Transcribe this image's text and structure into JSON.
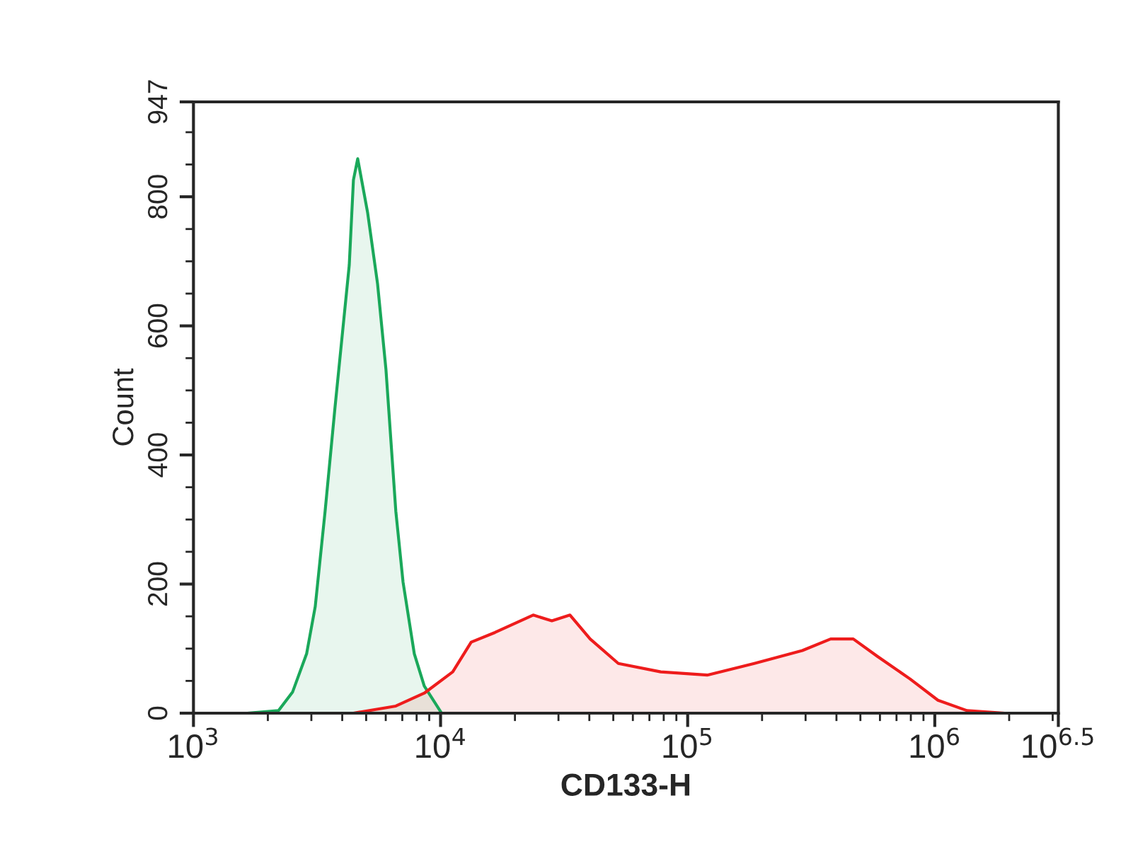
{
  "chart_data": {
    "type": "area",
    "xlabel": "CD133-H",
    "ylabel": "Count",
    "log": "x",
    "xlim": [
      1000,
      3162278
    ],
    "xticks": [
      {
        "value": 1000,
        "label": "10$^{3}$"
      },
      {
        "value": 10000,
        "label": "10$^{4}$"
      },
      {
        "value": 100000,
        "label": "10$^{5}$"
      },
      {
        "value": 1000000,
        "label": "10$^{6}$"
      },
      {
        "value": 3162278,
        "label": "10$^{6.5}$"
      }
    ],
    "ylim": [
      0,
      947
    ],
    "yticks": [
      0,
      200,
      400,
      600,
      800,
      947
    ],
    "grid": false,
    "series": [
      {
        "color": "#1aa85a",
        "x": [
          1650,
          2210,
          2520,
          2870,
          3110,
          3410,
          3740,
          4270,
          4440,
          4620,
          5070,
          5560,
          6010,
          6590,
          7050,
          7830,
          8590,
          10100
        ],
        "values": [
          0,
          4,
          33,
          92,
          165,
          313,
          474,
          694,
          826,
          859,
          775,
          665,
          533,
          313,
          203,
          92,
          42,
          0
        ]
      },
      {
        "color": "#ee1c1c",
        "x": [
          4440,
          6590,
          8590,
          11200,
          13300,
          16600,
          23700,
          28200,
          33400,
          40300,
          52400,
          77800,
          120000,
          186000,
          291000,
          379000,
          468000,
          586000,
          794000,
          1030000,
          1350000,
          1920000
        ],
        "values": [
          0,
          11,
          31,
          64,
          110,
          125,
          152,
          143,
          152,
          115,
          77,
          64,
          59,
          77,
          97,
          115,
          115,
          88,
          53,
          20,
          4,
          0
        ]
      }
    ]
  }
}
